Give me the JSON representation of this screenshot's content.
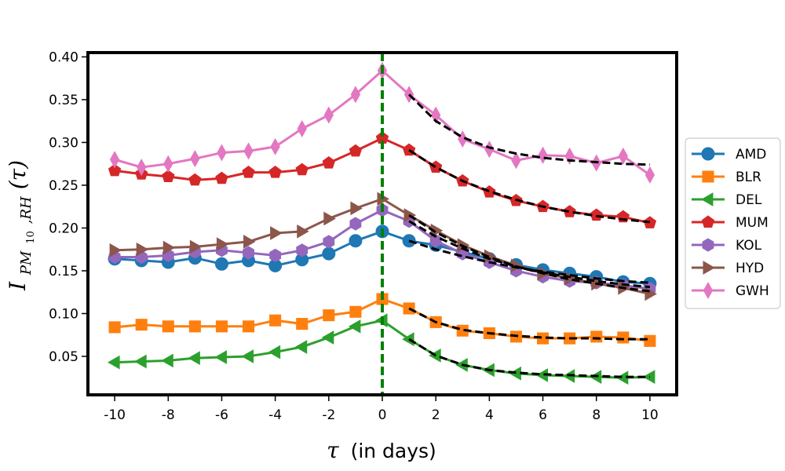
{
  "chart_data": {
    "type": "line",
    "title": "",
    "xlabel": "(in days)",
    "xlabel_symbol": "τ",
    "ylabel_symbol": "I",
    "ylabel_subscript": "PM",
    "ylabel_subsub": "10",
    "ylabel_subscript_tail": ",RH",
    "ylabel_arg": "(τ)",
    "xlim": [
      -11,
      11
    ],
    "ylim": [
      0.005,
      0.405
    ],
    "xticks": [
      -10,
      -8,
      -6,
      -4,
      -2,
      0,
      2,
      4,
      6,
      8,
      10
    ],
    "xtick_labels": [
      "-10",
      "-8",
      "-6",
      "-4",
      "-2",
      "0",
      "2",
      "4",
      "6",
      "8",
      "10"
    ],
    "yticks": [
      0.05,
      0.1,
      0.15,
      0.2,
      0.25,
      0.3,
      0.35,
      0.4
    ],
    "ytick_labels": [
      "0.05",
      "0.10",
      "0.15",
      "0.20",
      "0.25",
      "0.30",
      "0.35",
      "0.40"
    ],
    "vline": {
      "x": 0,
      "color": "#008000"
    },
    "fit_color": "#000000",
    "legend_position": "right",
    "x": [
      -10,
      -9,
      -8,
      -7,
      -6,
      -5,
      -4,
      -3,
      -2,
      -1,
      0,
      1,
      2,
      3,
      4,
      5,
      6,
      7,
      8,
      9,
      10
    ],
    "series": [
      {
        "name": "AMD",
        "color": "#1f77b4",
        "marker": "circle",
        "values": [
          0.164,
          0.162,
          0.16,
          0.165,
          0.158,
          0.162,
          0.156,
          0.163,
          0.17,
          0.185,
          0.196,
          0.185,
          0.18,
          0.172,
          0.164,
          0.157,
          0.151,
          0.147,
          0.143,
          0.137,
          0.135
        ],
        "fit": [
          0.185,
          0.175,
          0.167,
          0.16,
          0.154,
          0.149,
          0.145,
          0.141,
          0.138,
          0.136
        ]
      },
      {
        "name": "BLR",
        "color": "#ff7f0e",
        "marker": "square",
        "values": [
          0.084,
          0.087,
          0.085,
          0.085,
          0.085,
          0.085,
          0.092,
          0.088,
          0.098,
          0.102,
          0.117,
          0.106,
          0.09,
          0.08,
          0.077,
          0.073,
          0.071,
          0.071,
          0.073,
          0.072,
          0.068
        ],
        "fit": [
          0.106,
          0.09,
          0.081,
          0.077,
          0.074,
          0.072,
          0.071,
          0.071,
          0.07,
          0.07
        ]
      },
      {
        "name": "DEL",
        "color": "#2ca02c",
        "marker": "triangle-left",
        "values": [
          0.043,
          0.044,
          0.045,
          0.048,
          0.049,
          0.05,
          0.055,
          0.061,
          0.072,
          0.085,
          0.092,
          0.07,
          0.051,
          0.04,
          0.034,
          0.03,
          0.028,
          0.027,
          0.026,
          0.025,
          0.026
        ],
        "fit": [
          0.07,
          0.051,
          0.04,
          0.034,
          0.031,
          0.029,
          0.028,
          0.027,
          0.026,
          0.026
        ]
      },
      {
        "name": "MUM",
        "color": "#d62728",
        "marker": "pentagon",
        "values": [
          0.267,
          0.263,
          0.26,
          0.256,
          0.258,
          0.265,
          0.265,
          0.268,
          0.276,
          0.29,
          0.305,
          0.291,
          0.271,
          0.255,
          0.242,
          0.232,
          0.225,
          0.219,
          0.215,
          0.213,
          0.206
        ],
        "fit": [
          0.291,
          0.271,
          0.255,
          0.243,
          0.233,
          0.225,
          0.219,
          0.214,
          0.21,
          0.207
        ]
      },
      {
        "name": "KOL",
        "color": "#9467bd",
        "marker": "hexagon",
        "values": [
          0.166,
          0.166,
          0.168,
          0.172,
          0.174,
          0.171,
          0.168,
          0.174,
          0.184,
          0.205,
          0.221,
          0.208,
          0.185,
          0.17,
          0.16,
          0.15,
          0.143,
          0.138,
          0.136,
          0.133,
          0.129
        ],
        "fit": [
          0.208,
          0.19,
          0.176,
          0.164,
          0.155,
          0.148,
          0.143,
          0.138,
          0.134,
          0.131
        ]
      },
      {
        "name": "HYD",
        "color": "#8c564b",
        "marker": "triangle-right",
        "values": [
          0.174,
          0.175,
          0.177,
          0.178,
          0.181,
          0.184,
          0.194,
          0.196,
          0.211,
          0.223,
          0.234,
          0.215,
          0.197,
          0.18,
          0.167,
          0.156,
          0.147,
          0.141,
          0.135,
          0.13,
          0.123
        ],
        "fit": [
          0.215,
          0.195,
          0.179,
          0.166,
          0.155,
          0.147,
          0.14,
          0.135,
          0.13,
          0.126
        ]
      },
      {
        "name": "GWH",
        "color": "#e377c2",
        "marker": "diamond",
        "values": [
          0.28,
          0.271,
          0.275,
          0.281,
          0.288,
          0.29,
          0.295,
          0.316,
          0.332,
          0.356,
          0.384,
          0.356,
          0.332,
          0.304,
          0.292,
          0.279,
          0.285,
          0.284,
          0.276,
          0.284,
          0.262
        ],
        "fit": [
          0.356,
          0.325,
          0.306,
          0.294,
          0.287,
          0.282,
          0.279,
          0.277,
          0.275,
          0.274
        ]
      }
    ]
  }
}
